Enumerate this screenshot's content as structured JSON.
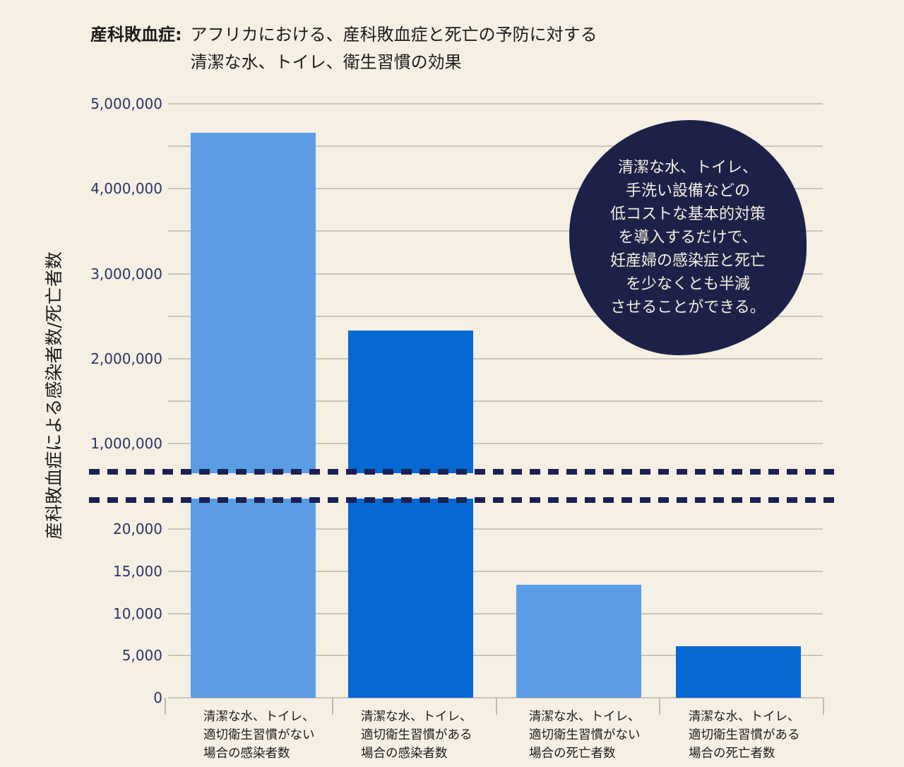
{
  "title": {
    "label": "産科敗血症:",
    "text": "アフリカにおける、産科敗血症と死亡の予防に対する\n清潔な水、トイレ、衛生習慣の効果"
  },
  "y_axis_label": "産科敗血症による感染者数/死亡者数",
  "annotation": {
    "text": "清潔な水、トイレ、\n手洗い設備などの\n低コストな基本的対策\nを導入するだけで、\n妊産婦の感染症と死亡\nを少なくとも半減\nさせることができる。"
  },
  "colors": {
    "background": "#f6efe4",
    "bar_light_blue": "#5a9de4",
    "bar_dark_blue": "#0568d3",
    "annotation_navy": "#1d2147",
    "break_dash_navy": "#1b2153",
    "gridline": "#c9c4ba",
    "tick_text": "#2a3564",
    "title_text": "#1c1c1c"
  },
  "chart_data": {
    "type": "bar",
    "broken_axis": true,
    "title": "産科敗血症: アフリカにおける、産科敗血症と死亡の予防に対する清潔な水、トイレ、衛生習慣の効果",
    "ylabel": "産科敗血症による感染者数/死亡者数",
    "grid": true,
    "legend": "none",
    "upper_axis": {
      "min": 1000000,
      "max": 5000000,
      "label_step": 1000000,
      "grid_step": 500000,
      "tick_labels": [
        "5,000,000",
        "4,000,000",
        "3,000,000",
        "2,000,000",
        "1,000,000"
      ]
    },
    "lower_axis": {
      "min": 0,
      "max": 20000,
      "label_step": 5000,
      "grid_step": 5000,
      "tick_labels": [
        "20,000",
        "15,000",
        "10,000",
        "5,000",
        "0"
      ]
    },
    "categories": [
      "清潔な水、トイレ、\n適切衛生習慣がない\n場合の感染者数",
      "清潔な水、トイレ、\n適切衛生習慣がある\n場合の感染者数",
      "清潔な水、トイレ、\n適切衛生習慣がない\n場合の死亡者数",
      "清潔な水、トイレ、\n適切衛生習慣がある\n場合の死亡者数"
    ],
    "values": [
      4660000,
      2330000,
      13400,
      6100
    ],
    "bar_colors": [
      "light",
      "dark",
      "light",
      "dark"
    ]
  }
}
